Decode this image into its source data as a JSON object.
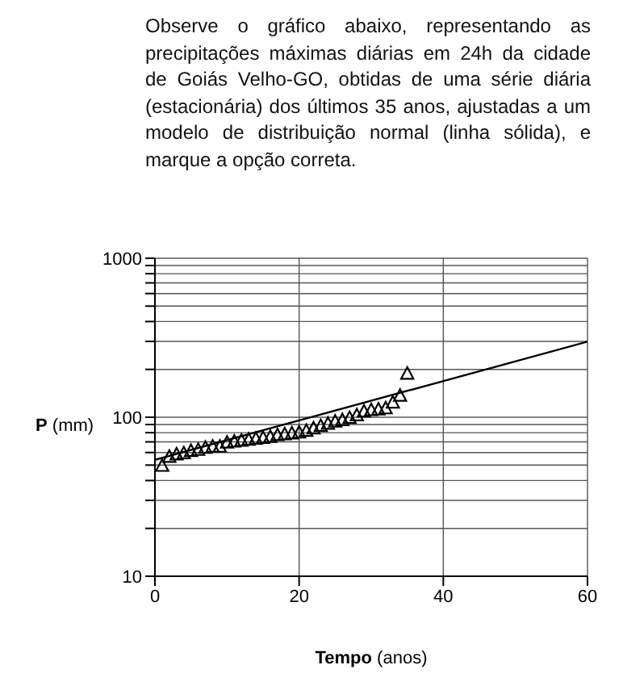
{
  "chart_data": {
    "type": "scatter",
    "title": "Observe o gráfico abaixo, representando as precipitações máximas diárias em 24h da cidade de Goiás Velho-GO, obtidas de uma série diária (estacionária) dos últimos 35 anos, ajustadas a um modelo de distribuição normal (linha sólida), e marque a opção correta.",
    "xlabel": "Tempo (anos)",
    "ylabel": "P (mm)",
    "log": "y",
    "grid": true,
    "marker": "triangle",
    "xlim": [
      0,
      60
    ],
    "xticks": [
      0,
      20,
      40,
      60
    ],
    "ylim": [
      10,
      1000
    ],
    "yticks": [
      10,
      {
        "value": 20,
        "label": null
      },
      {
        "value": 30,
        "label": null
      },
      {
        "value": 40,
        "label": null
      },
      {
        "value": 50,
        "label": null
      },
      {
        "value": 60,
        "label": null
      },
      {
        "value": 70,
        "label": null
      },
      {
        "value": 80,
        "label": null
      },
      {
        "value": 90,
        "label": null
      },
      100,
      {
        "value": 200,
        "label": null
      },
      {
        "value": 300,
        "label": null
      },
      {
        "value": 400,
        "label": null
      },
      {
        "value": 500,
        "label": null
      },
      {
        "value": 600,
        "label": null
      },
      {
        "value": 700,
        "label": null
      },
      {
        "value": 800,
        "label": null
      },
      {
        "value": 900,
        "label": null
      },
      1000
    ],
    "x": [
      1,
      2,
      3,
      4,
      5,
      6,
      7,
      8,
      9,
      10,
      11,
      12,
      13,
      14,
      15,
      16,
      17,
      18,
      19,
      20,
      21,
      22,
      23,
      24,
      25,
      26,
      27,
      28,
      29,
      30,
      31,
      32,
      33,
      34,
      35
    ],
    "series": [
      {
        "color": "#000000",
        "values": [
          50,
          57,
          59,
          60,
          62,
          63,
          65,
          66,
          66,
          70,
          71,
          72,
          73,
          74,
          75,
          76,
          78,
          79,
          80,
          81,
          83,
          86,
          89,
          92,
          95,
          97,
          100,
          104,
          110,
          112,
          113,
          115,
          125,
          138,
          190
        ]
      },
      {
        "type": "line",
        "color": "#000000",
        "marker": "none",
        "x": [
          0,
          60
        ],
        "values": [
          54,
          299
        ]
      }
    ]
  }
}
